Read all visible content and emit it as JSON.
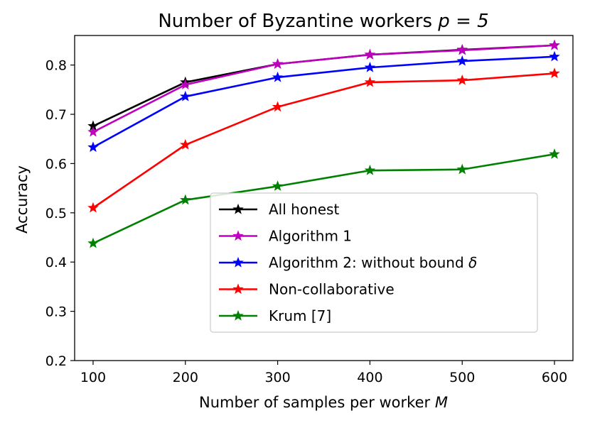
{
  "chart_data": {
    "type": "line",
    "title": "Number of Byzantine workers p = 5",
    "title_prefix": "Number of Byzantine workers",
    "title_math": "p = 5",
    "xlabel": "Number of samples per worker M",
    "xlabel_prefix": "Number of samples per worker",
    "xlabel_math": "M",
    "ylabel": "Accuracy",
    "x": [
      100,
      200,
      300,
      400,
      500,
      600
    ],
    "xticks": [
      "100",
      "200",
      "300",
      "400",
      "500",
      "600"
    ],
    "yticks": [
      "0.2",
      "0.3",
      "0.4",
      "0.5",
      "0.6",
      "0.7",
      "0.8"
    ],
    "xlim": [
      80,
      620
    ],
    "ylim": [
      0.2,
      0.86
    ],
    "grid": false,
    "legend_position": "center-bottom",
    "marker": "star",
    "series": [
      {
        "name": "All honest",
        "color": "#000000",
        "values": [
          0.676,
          0.765,
          0.802,
          0.821,
          0.831,
          0.84
        ]
      },
      {
        "name": "Algorithm 1",
        "color": "#bf00bf",
        "values": [
          0.664,
          0.76,
          0.802,
          0.821,
          0.83,
          0.84
        ]
      },
      {
        "name": "Algorithm 2: without bound δ",
        "name_prefix": "Algorithm 2: without bound",
        "name_math": "δ",
        "color": "#0000ff",
        "values": [
          0.633,
          0.736,
          0.775,
          0.795,
          0.808,
          0.817
        ]
      },
      {
        "name": "Non-collaborative",
        "color": "#ff0000",
        "values": [
          0.51,
          0.638,
          0.715,
          0.765,
          0.769,
          0.783
        ]
      },
      {
        "name": "Krum [7]",
        "color": "#008000",
        "values": [
          0.438,
          0.526,
          0.554,
          0.586,
          0.588,
          0.619
        ]
      }
    ]
  }
}
